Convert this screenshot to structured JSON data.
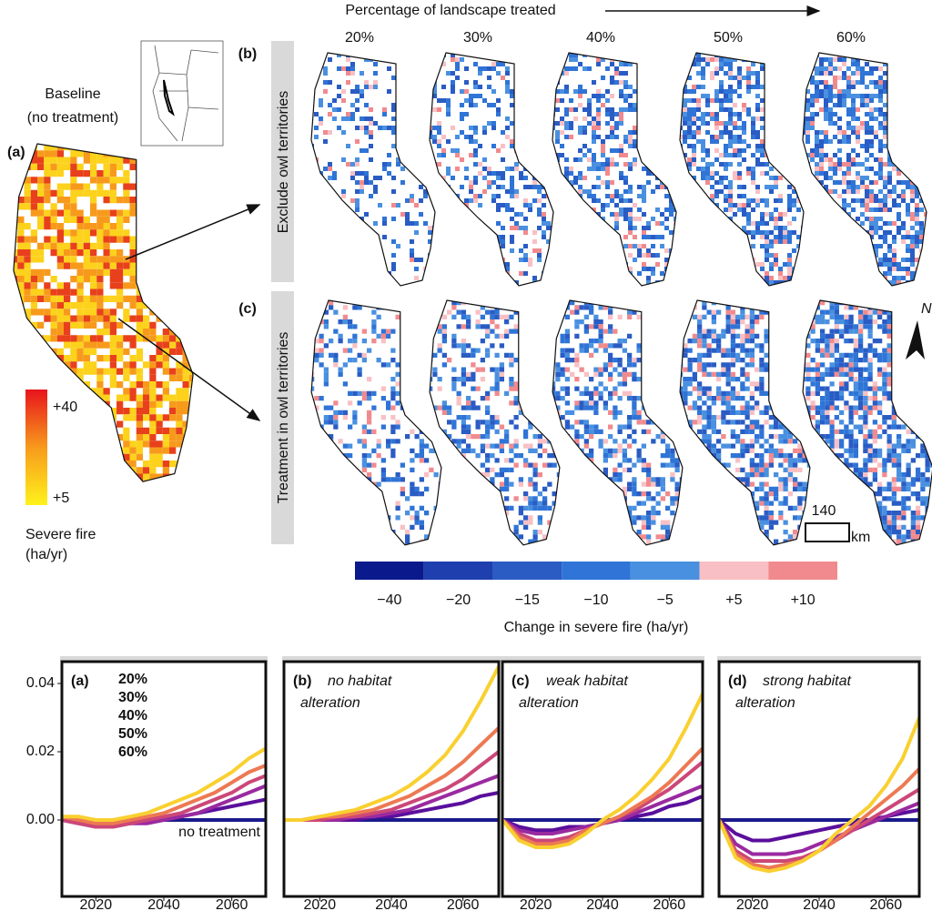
{
  "maps": {
    "header": "Percentage of landscape treated",
    "columns": [
      "20%",
      "30%",
      "40%",
      "50%",
      "60%"
    ],
    "rows": [
      {
        "label": "(b)",
        "title": "Exclude owl territories"
      },
      {
        "label": "(c)",
        "title": "Treatment in owl territories"
      }
    ],
    "baseline": {
      "label": "(a)",
      "title": [
        "Baseline",
        "(no treatment)"
      ],
      "scale_labels": [
        "+40",
        "+5"
      ],
      "scale_title": [
        "Severe fire",
        "(ha/yr)"
      ]
    },
    "colorbar": {
      "labels": [
        "−40",
        "−20",
        "−15",
        "−10",
        "−5",
        "+5",
        "+10"
      ],
      "colors": [
        "#0a1a8c",
        "#1f3fae",
        "#2a5cc4",
        "#2f74d6",
        "#4a90e0",
        "#f8c0c4",
        "#f18a8e"
      ],
      "title": "Change in severe fire (ha/yr)"
    },
    "scale_bar": {
      "distance": "140",
      "unit": "km"
    },
    "north": "N"
  },
  "chart_data": [
    {
      "type": "line",
      "label": "(a)",
      "legend": "top-left",
      "x": [
        2010,
        2015,
        2020,
        2025,
        2030,
        2035,
        2040,
        2045,
        2050,
        2055,
        2060,
        2065,
        2070
      ],
      "xlim": [
        2010,
        2070
      ],
      "xticks": [
        2020,
        2040,
        2060
      ],
      "ylim": [
        -0.0224,
        0.0464
      ],
      "yticks": [
        {
          "value": 0,
          "label": "0.00"
        },
        0.02,
        0.04
      ],
      "series": [
        {
          "name": "no treatment",
          "color": "#1a1a8c",
          "values": [
            0,
            0,
            0,
            0,
            0,
            0,
            0,
            0,
            0,
            0,
            0,
            0,
            0
          ]
        },
        {
          "name": "20%",
          "color": "#5b0f9c",
          "values": [
            0,
            -0.001,
            -0.001,
            -0.001,
            -0.001,
            0,
            0,
            0.001,
            0.002,
            0.003,
            0.004,
            0.005,
            0.006
          ]
        },
        {
          "name": "30%",
          "color": "#9a2aa0",
          "values": [
            0,
            -0.001,
            -0.002,
            -0.002,
            -0.001,
            -0.001,
            0,
            0.001,
            0.002,
            0.004,
            0.006,
            0.008,
            0.01
          ]
        },
        {
          "name": "40%",
          "color": "#cc4778",
          "values": [
            0,
            -0.001,
            -0.002,
            -0.002,
            -0.001,
            0,
            0.001,
            0.002,
            0.004,
            0.006,
            0.008,
            0.011,
            0.013
          ]
        },
        {
          "name": "50%",
          "color": "#ed7953",
          "values": [
            0.001,
            0,
            -0.001,
            -0.001,
            0,
            0.001,
            0.002,
            0.004,
            0.006,
            0.008,
            0.011,
            0.014,
            0.016
          ]
        },
        {
          "name": "60%",
          "color": "#f9d030",
          "values": [
            0.001,
            0.001,
            0,
            0,
            0.001,
            0.002,
            0.004,
            0.006,
            0.008,
            0.011,
            0.014,
            0.018,
            0.021
          ]
        }
      ]
    },
    {
      "type": "line",
      "label": "(b)",
      "title": [
        "no habitat",
        "alteration"
      ],
      "x": [
        2010,
        2015,
        2020,
        2025,
        2030,
        2035,
        2040,
        2045,
        2050,
        2055,
        2060,
        2065,
        2070
      ],
      "xlim": [
        2010,
        2070
      ],
      "xticks": [
        2020,
        2040,
        2060
      ],
      "ylim": [
        -0.0224,
        0.0464
      ],
      "series": [
        {
          "color": "#1a1a8c",
          "values": [
            0,
            0,
            0,
            0,
            0,
            0,
            0,
            0,
            0,
            0,
            0,
            0,
            0
          ]
        },
        {
          "color": "#5b0f9c",
          "values": [
            0,
            0,
            0,
            0,
            0,
            0.001,
            0.001,
            0.002,
            0.003,
            0.004,
            0.005,
            0.007,
            0.008
          ]
        },
        {
          "color": "#9a2aa0",
          "values": [
            0,
            0,
            0,
            0,
            0.001,
            0.001,
            0.002,
            0.003,
            0.005,
            0.007,
            0.009,
            0.011,
            0.013
          ]
        },
        {
          "color": "#cc4778",
          "values": [
            0,
            0,
            0,
            0.001,
            0.001,
            0.002,
            0.003,
            0.005,
            0.007,
            0.009,
            0.012,
            0.016,
            0.02
          ]
        },
        {
          "color": "#ed7953",
          "values": [
            0,
            0,
            0.001,
            0.001,
            0.002,
            0.003,
            0.005,
            0.007,
            0.01,
            0.013,
            0.017,
            0.022,
            0.027
          ]
        },
        {
          "color": "#f9d030",
          "values": [
            0,
            0,
            0.001,
            0.002,
            0.003,
            0.005,
            0.007,
            0.01,
            0.014,
            0.019,
            0.026,
            0.035,
            0.045
          ]
        }
      ]
    },
    {
      "type": "line",
      "label": "(c)",
      "title": [
        "weak habitat",
        "alteration"
      ],
      "x": [
        2010,
        2015,
        2020,
        2025,
        2030,
        2035,
        2040,
        2045,
        2050,
        2055,
        2060,
        2065,
        2070
      ],
      "xlim": [
        2010,
        2070
      ],
      "xticks": [
        2020,
        2040,
        2060
      ],
      "ylim": [
        -0.0224,
        0.0464
      ],
      "series": [
        {
          "color": "#1a1a8c",
          "values": [
            0,
            0,
            0,
            0,
            0,
            0,
            0,
            0,
            0,
            0,
            0,
            0,
            0
          ]
        },
        {
          "color": "#5b0f9c",
          "values": [
            0,
            -0.002,
            -0.003,
            -0.003,
            -0.002,
            -0.002,
            -0.001,
            0,
            0.001,
            0.002,
            0.004,
            0.005,
            0.007
          ]
        },
        {
          "color": "#9a2aa0",
          "values": [
            0,
            -0.003,
            -0.004,
            -0.004,
            -0.003,
            -0.002,
            -0.001,
            0,
            0.002,
            0.004,
            0.006,
            0.008,
            0.01
          ]
        },
        {
          "color": "#cc4778",
          "values": [
            0,
            -0.004,
            -0.006,
            -0.006,
            -0.005,
            -0.003,
            -0.001,
            0.001,
            0.003,
            0.006,
            0.009,
            0.013,
            0.017
          ]
        },
        {
          "color": "#ed7953",
          "values": [
            0,
            -0.005,
            -0.007,
            -0.007,
            -0.006,
            -0.003,
            -0.001,
            0.001,
            0.004,
            0.007,
            0.011,
            0.016,
            0.021
          ]
        },
        {
          "color": "#f9d030",
          "values": [
            0,
            -0.006,
            -0.008,
            -0.008,
            -0.007,
            -0.004,
            0,
            0.003,
            0.007,
            0.012,
            0.018,
            0.027,
            0.037
          ]
        }
      ]
    },
    {
      "type": "line",
      "label": "(d)",
      "title": [
        "strong habitat",
        "alteration"
      ],
      "x": [
        2010,
        2015,
        2020,
        2025,
        2030,
        2035,
        2040,
        2045,
        2050,
        2055,
        2060,
        2065,
        2070
      ],
      "xlim": [
        2010,
        2070
      ],
      "xticks": [
        2020,
        2040,
        2060
      ],
      "ylim": [
        -0.0224,
        0.0464
      ],
      "series": [
        {
          "color": "#1a1a8c",
          "values": [
            0,
            0,
            0,
            0,
            0,
            0,
            0,
            0,
            0,
            0,
            0,
            0,
            0
          ]
        },
        {
          "color": "#5b0f9c",
          "values": [
            0,
            -0.004,
            -0.006,
            -0.006,
            -0.005,
            -0.004,
            -0.003,
            -0.002,
            -0.001,
            0,
            0.001,
            0.002,
            0.003
          ]
        },
        {
          "color": "#9a2aa0",
          "values": [
            0,
            -0.007,
            -0.01,
            -0.01,
            -0.01,
            -0.009,
            -0.007,
            -0.005,
            -0.003,
            -0.001,
            0.001,
            0.003,
            0.005
          ]
        },
        {
          "color": "#cc4778",
          "values": [
            0,
            -0.009,
            -0.012,
            -0.012,
            -0.012,
            -0.011,
            -0.009,
            -0.006,
            -0.003,
            0,
            0.003,
            0.006,
            0.009
          ]
        },
        {
          "color": "#ed7953",
          "values": [
            0,
            -0.01,
            -0.013,
            -0.014,
            -0.013,
            -0.012,
            -0.009,
            -0.006,
            -0.002,
            0.002,
            0.006,
            0.01,
            0.015
          ]
        },
        {
          "color": "#f9d030",
          "values": [
            0,
            -0.011,
            -0.014,
            -0.015,
            -0.014,
            -0.012,
            -0.009,
            -0.004,
            0,
            0.004,
            0.01,
            0.018,
            0.03
          ]
        }
      ]
    }
  ]
}
